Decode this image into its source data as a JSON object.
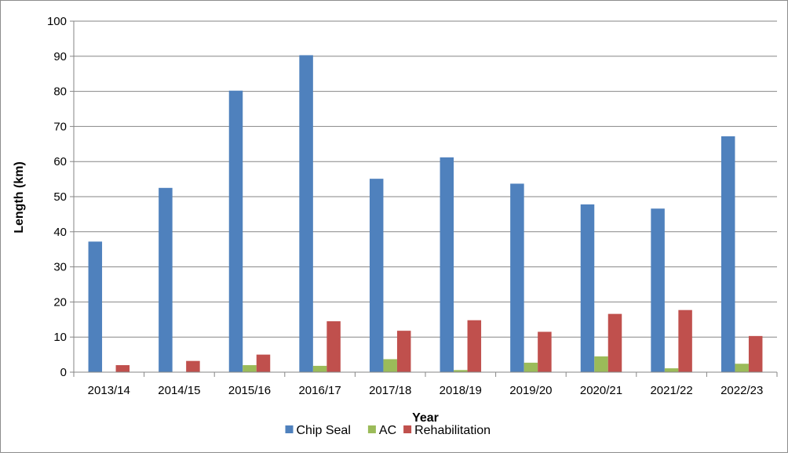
{
  "chart_data": {
    "type": "bar",
    "xlabel": "Year",
    "ylabel": "Length (km)",
    "ylim": [
      0,
      100
    ],
    "ytick_step": 10,
    "grid": true,
    "legend_position": "bottom",
    "categories": [
      "2013/14",
      "2014/15",
      "2015/16",
      "2016/17",
      "2017/18",
      "2018/19",
      "2019/20",
      "2020/21",
      "2021/22",
      "2022/23"
    ],
    "series": [
      {
        "name": "Chip Seal",
        "color": "#4f81bd",
        "values": [
          37.2,
          52.5,
          80.2,
          90.3,
          55.1,
          61.2,
          53.7,
          47.8,
          46.6,
          67.2
        ]
      },
      {
        "name": "AC",
        "color": "#9bbb59",
        "values": [
          0,
          0,
          2.0,
          1.8,
          3.7,
          0.6,
          2.7,
          4.5,
          1.1,
          2.4
        ]
      },
      {
        "name": "Rehabilitation",
        "color": "#c0504d",
        "values": [
          2.0,
          3.2,
          5.0,
          14.5,
          11.8,
          14.8,
          11.5,
          16.6,
          17.7,
          10.3
        ]
      }
    ]
  }
}
